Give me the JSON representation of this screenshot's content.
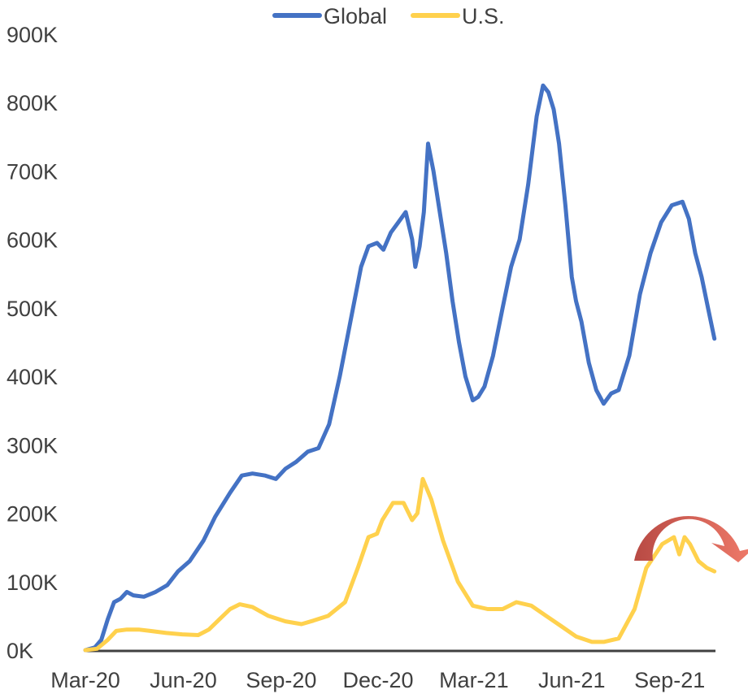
{
  "chart_data": {
    "type": "line",
    "title": "",
    "xlabel": "",
    "ylabel": "",
    "ylim": [
      0,
      900000
    ],
    "grid": false,
    "legend_placement": "top-center",
    "y_ticks": [
      "0K",
      "100K",
      "200K",
      "300K",
      "400K",
      "500K",
      "600K",
      "700K",
      "800K",
      "900K"
    ],
    "x_ticks": [
      "Mar-20",
      "Jun-20",
      "Sep-20",
      "Dec-20",
      "Mar-21",
      "Jun-21",
      "Sep-21"
    ],
    "series": [
      {
        "name": "Global",
        "color": "#4472C4",
        "points": [
          [
            "2020-03-01",
            0
          ],
          [
            "2020-03-10",
            4000
          ],
          [
            "2020-03-16",
            15000
          ],
          [
            "2020-03-22",
            45000
          ],
          [
            "2020-03-28",
            70000
          ],
          [
            "2020-04-03",
            75000
          ],
          [
            "2020-04-09",
            85000
          ],
          [
            "2020-04-15",
            80000
          ],
          [
            "2020-04-25",
            78000
          ],
          [
            "2020-05-06",
            85000
          ],
          [
            "2020-05-17",
            95000
          ],
          [
            "2020-05-27",
            115000
          ],
          [
            "2020-06-07",
            130000
          ],
          [
            "2020-06-20",
            160000
          ],
          [
            "2020-07-01",
            195000
          ],
          [
            "2020-07-15",
            230000
          ],
          [
            "2020-07-26",
            255000
          ],
          [
            "2020-08-05",
            258000
          ],
          [
            "2020-08-17",
            255000
          ],
          [
            "2020-08-27",
            250000
          ],
          [
            "2020-09-05",
            265000
          ],
          [
            "2020-09-15",
            275000
          ],
          [
            "2020-09-26",
            290000
          ],
          [
            "2020-10-06",
            295000
          ],
          [
            "2020-10-16",
            330000
          ],
          [
            "2020-10-26",
            400000
          ],
          [
            "2020-11-05",
            480000
          ],
          [
            "2020-11-15",
            560000
          ],
          [
            "2020-11-22",
            590000
          ],
          [
            "2020-11-30",
            595000
          ],
          [
            "2020-12-06",
            585000
          ],
          [
            "2020-12-13",
            610000
          ],
          [
            "2020-12-20",
            625000
          ],
          [
            "2020-12-27",
            640000
          ],
          [
            "2021-01-02",
            600000
          ],
          [
            "2021-01-05",
            560000
          ],
          [
            "2021-01-09",
            590000
          ],
          [
            "2021-01-13",
            640000
          ],
          [
            "2021-01-17",
            740000
          ],
          [
            "2021-01-22",
            700000
          ],
          [
            "2021-01-28",
            640000
          ],
          [
            "2021-02-03",
            580000
          ],
          [
            "2021-02-09",
            510000
          ],
          [
            "2021-02-15",
            450000
          ],
          [
            "2021-02-21",
            400000
          ],
          [
            "2021-02-28",
            365000
          ],
          [
            "2021-03-05",
            370000
          ],
          [
            "2021-03-11",
            385000
          ],
          [
            "2021-03-19",
            430000
          ],
          [
            "2021-03-28",
            500000
          ],
          [
            "2021-04-05",
            560000
          ],
          [
            "2021-04-13",
            600000
          ],
          [
            "2021-04-21",
            680000
          ],
          [
            "2021-04-29",
            780000
          ],
          [
            "2021-05-05",
            825000
          ],
          [
            "2021-05-10",
            815000
          ],
          [
            "2021-05-15",
            790000
          ],
          [
            "2021-05-20",
            740000
          ],
          [
            "2021-05-26",
            650000
          ],
          [
            "2021-06-01",
            545000
          ],
          [
            "2021-06-05",
            510000
          ],
          [
            "2021-06-10",
            480000
          ],
          [
            "2021-06-17",
            420000
          ],
          [
            "2021-06-24",
            380000
          ],
          [
            "2021-07-01",
            360000
          ],
          [
            "2021-07-08",
            375000
          ],
          [
            "2021-07-15",
            380000
          ],
          [
            "2021-07-25",
            430000
          ],
          [
            "2021-08-04",
            520000
          ],
          [
            "2021-08-14",
            580000
          ],
          [
            "2021-08-24",
            625000
          ],
          [
            "2021-09-03",
            650000
          ],
          [
            "2021-09-13",
            655000
          ],
          [
            "2021-09-19",
            630000
          ],
          [
            "2021-09-25",
            580000
          ],
          [
            "2021-10-01",
            545000
          ],
          [
            "2021-10-07",
            500000
          ],
          [
            "2021-10-13",
            455000
          ]
        ]
      },
      {
        "name": "U.S.",
        "color": "#FFD14D",
        "points": [
          [
            "2020-03-01",
            0
          ],
          [
            "2020-03-12",
            2000
          ],
          [
            "2020-03-22",
            15000
          ],
          [
            "2020-03-30",
            28000
          ],
          [
            "2020-04-09",
            30000
          ],
          [
            "2020-04-20",
            30000
          ],
          [
            "2020-05-01",
            28000
          ],
          [
            "2020-05-16",
            25000
          ],
          [
            "2020-05-31",
            23000
          ],
          [
            "2020-06-15",
            22000
          ],
          [
            "2020-06-25",
            30000
          ],
          [
            "2020-07-05",
            45000
          ],
          [
            "2020-07-15",
            60000
          ],
          [
            "2020-07-24",
            67000
          ],
          [
            "2020-08-05",
            63000
          ],
          [
            "2020-08-20",
            50000
          ],
          [
            "2020-09-05",
            42000
          ],
          [
            "2020-09-20",
            38000
          ],
          [
            "2020-10-01",
            43000
          ],
          [
            "2020-10-15",
            50000
          ],
          [
            "2020-10-31",
            70000
          ],
          [
            "2020-11-12",
            120000
          ],
          [
            "2020-11-22",
            165000
          ],
          [
            "2020-11-30",
            170000
          ],
          [
            "2020-12-05",
            190000
          ],
          [
            "2020-12-15",
            215000
          ],
          [
            "2020-12-25",
            215000
          ],
          [
            "2021-01-02",
            190000
          ],
          [
            "2021-01-07",
            200000
          ],
          [
            "2021-01-12",
            250000
          ],
          [
            "2021-01-20",
            220000
          ],
          [
            "2021-01-31",
            160000
          ],
          [
            "2021-02-14",
            100000
          ],
          [
            "2021-02-28",
            65000
          ],
          [
            "2021-03-14",
            60000
          ],
          [
            "2021-03-28",
            60000
          ],
          [
            "2021-04-10",
            70000
          ],
          [
            "2021-04-24",
            65000
          ],
          [
            "2021-05-08",
            50000
          ],
          [
            "2021-05-22",
            35000
          ],
          [
            "2021-06-05",
            20000
          ],
          [
            "2021-06-20",
            12000
          ],
          [
            "2021-07-01",
            12000
          ],
          [
            "2021-07-15",
            17000
          ],
          [
            "2021-07-30",
            60000
          ],
          [
            "2021-08-10",
            120000
          ],
          [
            "2021-08-25",
            155000
          ],
          [
            "2021-09-05",
            165000
          ],
          [
            "2021-09-10",
            140000
          ],
          [
            "2021-09-15",
            165000
          ],
          [
            "2021-09-20",
            155000
          ],
          [
            "2021-09-28",
            130000
          ],
          [
            "2021-10-06",
            120000
          ],
          [
            "2021-10-13",
            115000
          ]
        ]
      }
    ],
    "annotation": {
      "type": "curved-arrow",
      "description_color": "#C0504D",
      "end_color": "#F07B6A"
    }
  }
}
